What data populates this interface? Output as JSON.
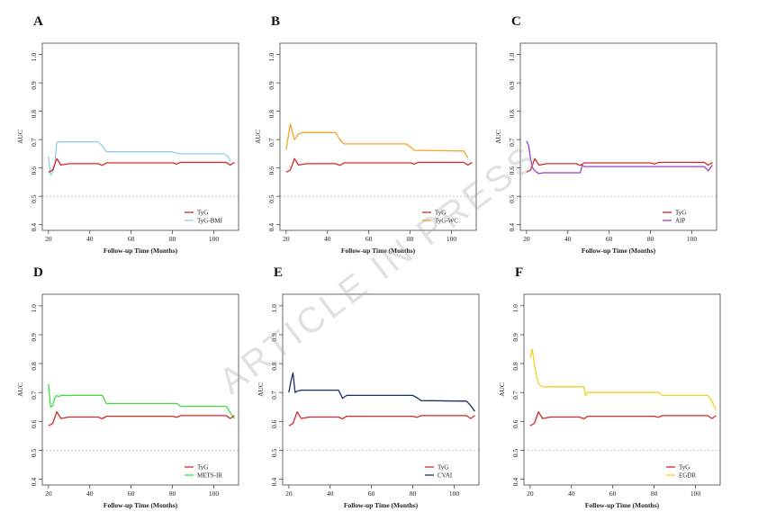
{
  "watermark": "ARTICLE IN PRESS",
  "chart_data": [
    {
      "panel_letter": "A",
      "type": "line",
      "xlabel": "Follow-up Time (Months)",
      "ylabel": "AUC",
      "xlim": [
        17,
        112
      ],
      "ylim": [
        0.38,
        1.04
      ],
      "xticks": [
        20,
        40,
        60,
        80,
        100
      ],
      "yticks": [
        0.4,
        0.5,
        0.6,
        0.7,
        0.8,
        0.9,
        1.0
      ],
      "reference_line": 0.5,
      "legend_position": "bottom-right",
      "series": [
        {
          "name": "TyG",
          "color": "#d62728",
          "x": [
            20,
            22,
            24,
            26,
            28,
            30,
            44,
            46,
            48,
            80,
            82,
            84,
            106,
            108,
            110
          ],
          "y": [
            0.585,
            0.593,
            0.633,
            0.61,
            0.613,
            0.615,
            0.615,
            0.609,
            0.618,
            0.618,
            0.614,
            0.62,
            0.62,
            0.61,
            0.62
          ]
        },
        {
          "name": "TyG-BMI",
          "color": "#8fcfe8",
          "x": [
            20,
            21,
            22,
            23,
            24,
            25,
            44,
            46,
            48,
            80,
            82,
            84,
            105,
            107,
            108
          ],
          "y": [
            0.64,
            0.575,
            0.585,
            0.61,
            0.69,
            0.692,
            0.692,
            0.68,
            0.657,
            0.657,
            0.652,
            0.65,
            0.65,
            0.64,
            0.625
          ]
        }
      ]
    },
    {
      "panel_letter": "B",
      "type": "line",
      "xlabel": "Follow-up Time (Months)",
      "ylabel": "AUC",
      "xlim": [
        17,
        112
      ],
      "ylim": [
        0.38,
        1.04
      ],
      "xticks": [
        20,
        40,
        60,
        80,
        100
      ],
      "yticks": [
        0.4,
        0.5,
        0.6,
        0.7,
        0.8,
        0.9,
        1.0
      ],
      "reference_line": 0.5,
      "legend_position": "bottom-right",
      "series": [
        {
          "name": "TyG",
          "color": "#d62728",
          "x": [
            20,
            22,
            24,
            26,
            28,
            30,
            44,
            46,
            48,
            80,
            82,
            84,
            106,
            108,
            110
          ],
          "y": [
            0.585,
            0.593,
            0.633,
            0.61,
            0.613,
            0.615,
            0.615,
            0.609,
            0.618,
            0.618,
            0.614,
            0.62,
            0.62,
            0.61,
            0.62
          ]
        },
        {
          "name": "TyG-WC",
          "color": "#f5a623",
          "x": [
            20,
            22,
            24,
            26,
            28,
            44,
            46,
            48,
            78,
            80,
            82,
            106,
            108
          ],
          "y": [
            0.665,
            0.755,
            0.7,
            0.72,
            0.725,
            0.725,
            0.7,
            0.685,
            0.685,
            0.675,
            0.662,
            0.66,
            0.635
          ]
        }
      ]
    },
    {
      "panel_letter": "C",
      "type": "line",
      "xlabel": "Follow-up Time (Months)",
      "ylabel": "AUC",
      "xlim": [
        17,
        112
      ],
      "ylim": [
        0.38,
        1.04
      ],
      "xticks": [
        20,
        40,
        60,
        80,
        100
      ],
      "yticks": [
        0.4,
        0.5,
        0.6,
        0.7,
        0.8,
        0.9,
        1.0
      ],
      "reference_line": 0.5,
      "legend_position": "bottom-right",
      "series": [
        {
          "name": "TyG",
          "color": "#d62728",
          "x": [
            20,
            22,
            24,
            26,
            28,
            30,
            44,
            46,
            48,
            80,
            82,
            84,
            106,
            108,
            110
          ],
          "y": [
            0.585,
            0.593,
            0.633,
            0.61,
            0.613,
            0.615,
            0.615,
            0.609,
            0.618,
            0.618,
            0.614,
            0.62,
            0.62,
            0.61,
            0.62
          ]
        },
        {
          "name": "AIP",
          "color": "#9b3fc8",
          "x": [
            20,
            21,
            22,
            23,
            24,
            26,
            28,
            46,
            47,
            48,
            106,
            108,
            110
          ],
          "y": [
            0.695,
            0.68,
            0.63,
            0.6,
            0.59,
            0.58,
            0.583,
            0.583,
            0.61,
            0.605,
            0.605,
            0.59,
            0.61
          ]
        }
      ]
    },
    {
      "panel_letter": "D",
      "type": "line",
      "xlabel": "Follow-up Time (Months)",
      "ylabel": "AUC",
      "xlim": [
        17,
        112
      ],
      "ylim": [
        0.38,
        1.04
      ],
      "xticks": [
        20,
        40,
        60,
        80,
        100
      ],
      "yticks": [
        0.4,
        0.5,
        0.6,
        0.7,
        0.8,
        0.9,
        1.0
      ],
      "reference_line": 0.5,
      "legend_position": "bottom-right",
      "series": [
        {
          "name": "TyG",
          "color": "#d62728",
          "x": [
            20,
            22,
            24,
            26,
            28,
            30,
            44,
            46,
            48,
            80,
            82,
            84,
            106,
            108,
            110
          ],
          "y": [
            0.585,
            0.593,
            0.633,
            0.61,
            0.613,
            0.615,
            0.615,
            0.609,
            0.618,
            0.618,
            0.614,
            0.62,
            0.62,
            0.61,
            0.62
          ]
        },
        {
          "name": "METS-IR",
          "color": "#3de03d",
          "x": [
            20,
            21,
            22,
            23,
            24,
            25,
            26,
            46,
            48,
            82,
            84,
            106,
            108,
            110
          ],
          "y": [
            0.73,
            0.65,
            0.655,
            0.68,
            0.69,
            0.685,
            0.69,
            0.69,
            0.662,
            0.662,
            0.652,
            0.652,
            0.63,
            0.61
          ]
        }
      ]
    },
    {
      "panel_letter": "E",
      "type": "line",
      "xlabel": "Follow-up Time (Months)",
      "ylabel": "AUC",
      "xlim": [
        17,
        112
      ],
      "ylim": [
        0.38,
        1.04
      ],
      "xticks": [
        20,
        40,
        60,
        80,
        100
      ],
      "yticks": [
        0.4,
        0.5,
        0.6,
        0.7,
        0.8,
        0.9,
        1.0
      ],
      "reference_line": 0.5,
      "legend_position": "bottom-right",
      "series": [
        {
          "name": "TyG",
          "color": "#d62728",
          "x": [
            20,
            22,
            24,
            26,
            28,
            30,
            44,
            46,
            48,
            80,
            82,
            84,
            106,
            108,
            110
          ],
          "y": [
            0.585,
            0.593,
            0.633,
            0.61,
            0.613,
            0.615,
            0.615,
            0.609,
            0.618,
            0.618,
            0.614,
            0.62,
            0.62,
            0.61,
            0.62
          ]
        },
        {
          "name": "CVAI",
          "color": "#1f2a6e",
          "x": [
            20,
            21,
            22,
            23,
            24,
            26,
            44,
            46,
            48,
            80,
            82,
            84,
            106,
            108,
            110
          ],
          "y": [
            0.7,
            0.74,
            0.768,
            0.7,
            0.705,
            0.708,
            0.708,
            0.68,
            0.69,
            0.69,
            0.682,
            0.672,
            0.67,
            0.655,
            0.635
          ]
        }
      ]
    },
    {
      "panel_letter": "F",
      "type": "line",
      "xlabel": "Follow-up Time (Months)",
      "ylabel": "AUC",
      "xlim": [
        17,
        112
      ],
      "ylim": [
        0.38,
        1.04
      ],
      "xticks": [
        20,
        40,
        60,
        80,
        100
      ],
      "yticks": [
        0.4,
        0.5,
        0.6,
        0.7,
        0.8,
        0.9,
        1.0
      ],
      "reference_line": 0.5,
      "legend_position": "bottom-right",
      "series": [
        {
          "name": "TyG",
          "color": "#d62728",
          "x": [
            20,
            22,
            24,
            26,
            28,
            30,
            44,
            46,
            48,
            80,
            82,
            84,
            106,
            108,
            110
          ],
          "y": [
            0.585,
            0.593,
            0.633,
            0.61,
            0.613,
            0.615,
            0.615,
            0.609,
            0.618,
            0.618,
            0.614,
            0.62,
            0.62,
            0.61,
            0.62
          ]
        },
        {
          "name": "EGDR",
          "color": "#f2d21b",
          "x": [
            20,
            21,
            22,
            23,
            24,
            26,
            46,
            47,
            48,
            82,
            84,
            106,
            108,
            110
          ],
          "y": [
            0.82,
            0.85,
            0.8,
            0.76,
            0.73,
            0.72,
            0.72,
            0.69,
            0.7,
            0.7,
            0.69,
            0.69,
            0.67,
            0.64
          ]
        }
      ]
    }
  ]
}
